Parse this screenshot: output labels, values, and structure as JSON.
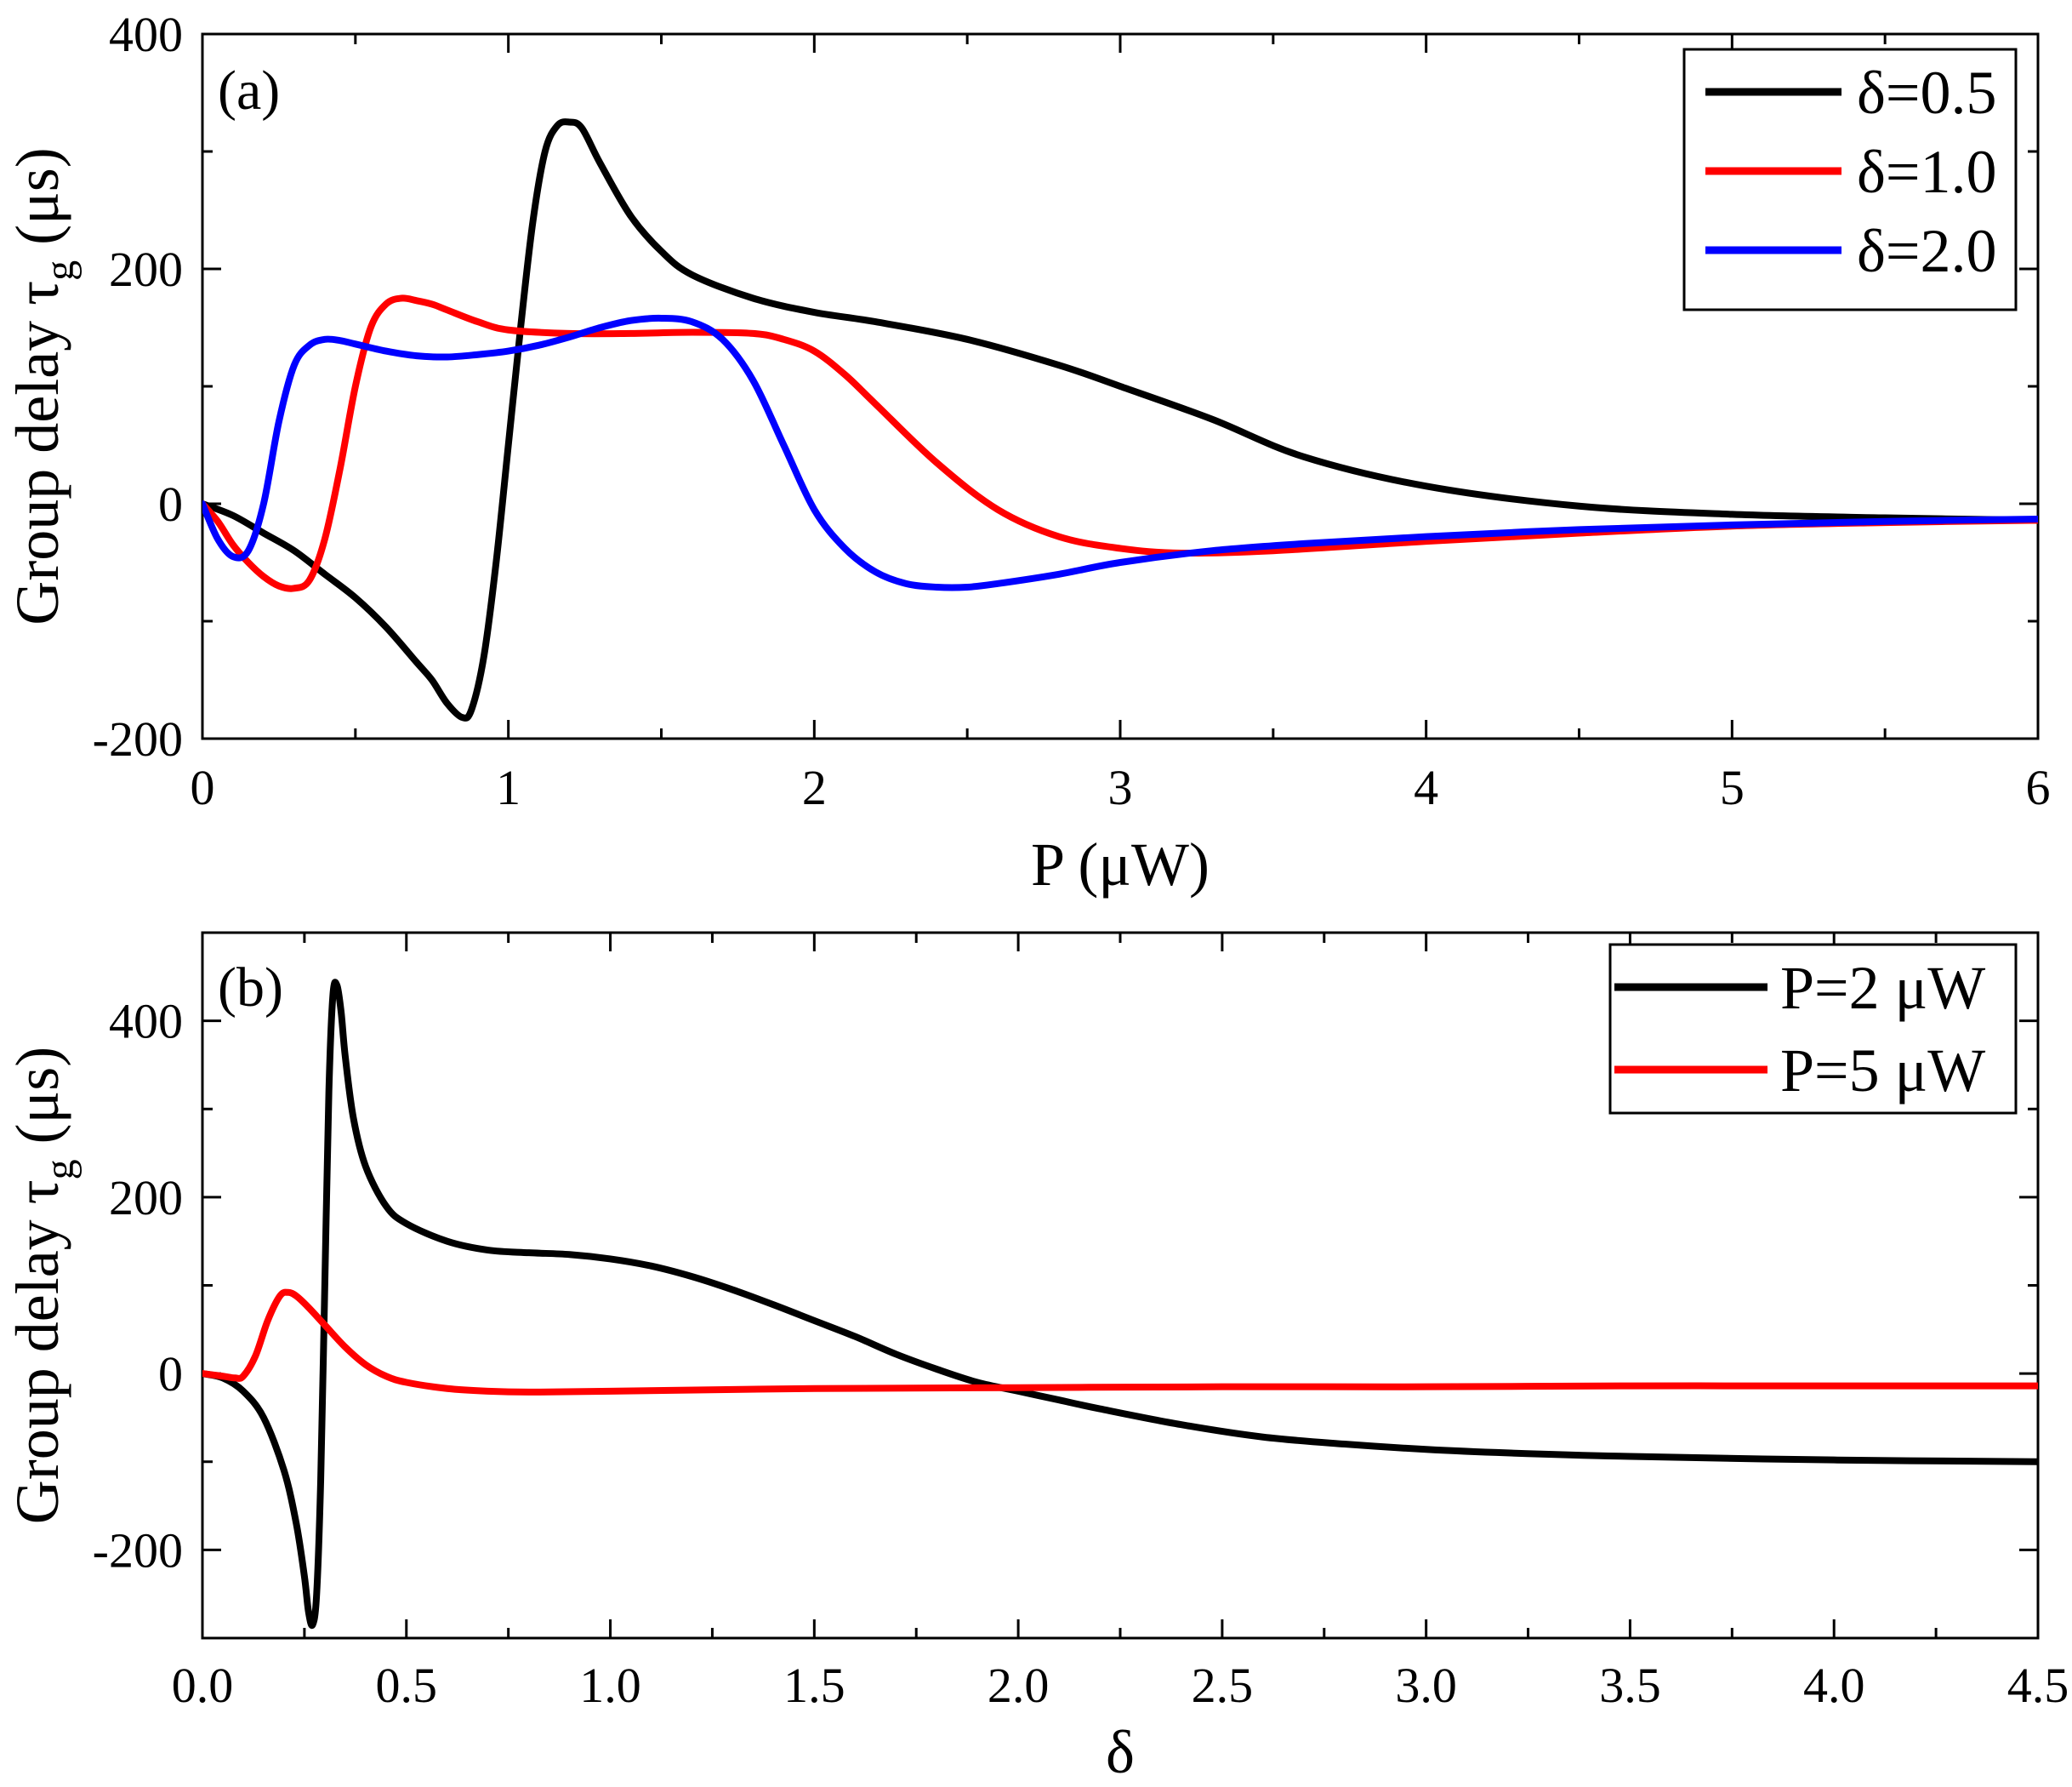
{
  "chart_data": [
    {
      "type": "line",
      "panel_label": "(a)",
      "title": "",
      "xlabel": "P (μW)",
      "ylabel_main": "Group delay τ",
      "ylabel_sub": "g",
      "ylabel_unit": "(μs)",
      "xlim": [
        0,
        6
      ],
      "ylim": [
        -200,
        400
      ],
      "xticks": [
        0,
        1,
        2,
        3,
        4,
        5,
        6
      ],
      "xtick_labels": [
        "0",
        "1",
        "2",
        "3",
        "4",
        "5",
        "6"
      ],
      "yticks": [
        -200,
        0,
        200,
        400
      ],
      "ytick_labels": [
        "-200",
        "0",
        "200",
        "400"
      ],
      "x_minor_step": 0.5,
      "y_minor_step": 100,
      "legend_position": "top-right",
      "grid": false,
      "series": [
        {
          "name": "δ=0.5",
          "color": "#000000",
          "x": [
            0,
            0.1,
            0.2,
            0.3,
            0.4,
            0.5,
            0.6,
            0.7,
            0.75,
            0.8,
            0.85,
            0.88,
            0.92,
            0.96,
            1.0,
            1.04,
            1.08,
            1.12,
            1.16,
            1.2,
            1.24,
            1.3,
            1.4,
            1.5,
            1.6,
            1.8,
            2.0,
            2.2,
            2.5,
            2.8,
            3.0,
            3.3,
            3.6,
            4.0,
            4.5,
            5.0,
            5.5,
            6.0
          ],
          "y": [
            0,
            -10,
            -25,
            -40,
            -60,
            -80,
            -105,
            -135,
            -150,
            -170,
            -182,
            -175,
            -130,
            -50,
            50,
            150,
            240,
            300,
            322,
            325,
            320,
            290,
            245,
            215,
            195,
            175,
            163,
            155,
            140,
            118,
            100,
            72,
            40,
            15,
            -2,
            -9,
            -12,
            -14
          ]
        },
        {
          "name": "δ=1.0",
          "color": "#ff0000",
          "x": [
            0,
            0.05,
            0.1,
            0.15,
            0.2,
            0.25,
            0.3,
            0.35,
            0.4,
            0.45,
            0.5,
            0.55,
            0.6,
            0.65,
            0.7,
            0.75,
            0.8,
            0.9,
            1.0,
            1.2,
            1.4,
            1.6,
            1.8,
            1.9,
            2.0,
            2.1,
            2.2,
            2.4,
            2.6,
            2.8,
            3.0,
            3.2,
            3.5,
            4.0,
            4.5,
            5.0,
            5.5,
            6.0
          ],
          "y": [
            0,
            -15,
            -35,
            -50,
            -62,
            -70,
            -72,
            -65,
            -30,
            30,
            100,
            150,
            170,
            175,
            173,
            170,
            165,
            155,
            148,
            145,
            145,
            146,
            145,
            140,
            130,
            110,
            85,
            35,
            -5,
            -28,
            -38,
            -42,
            -40,
            -32,
            -25,
            -19,
            -16,
            -14
          ]
        },
        {
          "name": "δ=2.0",
          "color": "#0000ff",
          "x": [
            0,
            0.05,
            0.1,
            0.15,
            0.2,
            0.25,
            0.3,
            0.35,
            0.4,
            0.45,
            0.5,
            0.6,
            0.7,
            0.8,
            0.9,
            1.0,
            1.1,
            1.2,
            1.3,
            1.4,
            1.5,
            1.6,
            1.7,
            1.8,
            1.9,
            2.0,
            2.1,
            2.2,
            2.3,
            2.4,
            2.5,
            2.6,
            2.8,
            3.0,
            3.3,
            3.6,
            4.0,
            4.5,
            5.0,
            5.5,
            6.0
          ],
          "y": [
            0,
            -30,
            -45,
            -40,
            0,
            70,
            118,
            135,
            140,
            139,
            136,
            130,
            126,
            125,
            127,
            130,
            135,
            142,
            150,
            156,
            158,
            155,
            140,
            105,
            50,
            -5,
            -38,
            -58,
            -68,
            -71,
            -71,
            -68,
            -60,
            -50,
            -40,
            -34,
            -28,
            -22,
            -18,
            -15,
            -13
          ]
        }
      ]
    },
    {
      "type": "line",
      "panel_label": "(b)",
      "title": "",
      "xlabel": "δ",
      "ylabel_main": "Group delay τ",
      "ylabel_sub": "g",
      "ylabel_unit": "(μs)",
      "xlim": [
        0,
        4.5
      ],
      "ylim": [
        -300,
        500
      ],
      "xticks": [
        0,
        0.5,
        1.0,
        1.5,
        2.0,
        2.5,
        3.0,
        3.5,
        4.0,
        4.5
      ],
      "xtick_labels": [
        "0.0",
        "0.5",
        "1.0",
        "1.5",
        "2.0",
        "2.5",
        "3.0",
        "3.5",
        "4.0",
        "4.5"
      ],
      "yticks": [
        -200,
        0,
        200,
        400
      ],
      "ytick_labels": [
        "-200",
        "0",
        "200",
        "400"
      ],
      "x_minor_step": 0.25,
      "y_minor_step": 100,
      "legend_position": "top-right",
      "grid": false,
      "series": [
        {
          "name": "P=2 μW",
          "color": "#000000",
          "x": [
            0,
            0.05,
            0.1,
            0.15,
            0.2,
            0.23,
            0.25,
            0.26,
            0.27,
            0.28,
            0.29,
            0.3,
            0.31,
            0.32,
            0.33,
            0.34,
            0.35,
            0.37,
            0.4,
            0.45,
            0.5,
            0.6,
            0.7,
            0.8,
            0.9,
            1.0,
            1.1,
            1.2,
            1.3,
            1.4,
            1.5,
            1.6,
            1.7,
            1.8,
            1.9,
            2.0,
            2.1,
            2.2,
            2.4,
            2.6,
            2.8,
            3.0,
            3.2,
            3.5,
            4.0,
            4.5
          ],
          "y": [
            0,
            -5,
            -20,
            -50,
            -110,
            -170,
            -230,
            -270,
            -285,
            -250,
            -120,
            100,
            320,
            430,
            440,
            410,
            360,
            290,
            235,
            190,
            170,
            150,
            140,
            137,
            135,
            130,
            122,
            110,
            95,
            78,
            60,
            42,
            22,
            5,
            -10,
            -20,
            -30,
            -40,
            -58,
            -72,
            -80,
            -86,
            -90,
            -94,
            -98,
            -100
          ]
        },
        {
          "name": "P=5 μW",
          "color": "#ff0000",
          "x": [
            0,
            0.05,
            0.08,
            0.1,
            0.13,
            0.16,
            0.19,
            0.21,
            0.23,
            0.26,
            0.3,
            0.35,
            0.4,
            0.45,
            0.5,
            0.6,
            0.7,
            0.8,
            1.0,
            1.5,
            2.0,
            2.5,
            3.0,
            3.5,
            4.0,
            4.5
          ],
          "y": [
            0,
            -3,
            -5,
            -3,
            20,
            60,
            88,
            92,
            88,
            75,
            55,
            30,
            10,
            -3,
            -10,
            -17,
            -20,
            -21,
            -20,
            -17,
            -16,
            -15,
            -15,
            -14,
            -14,
            -14
          ]
        }
      ]
    }
  ]
}
